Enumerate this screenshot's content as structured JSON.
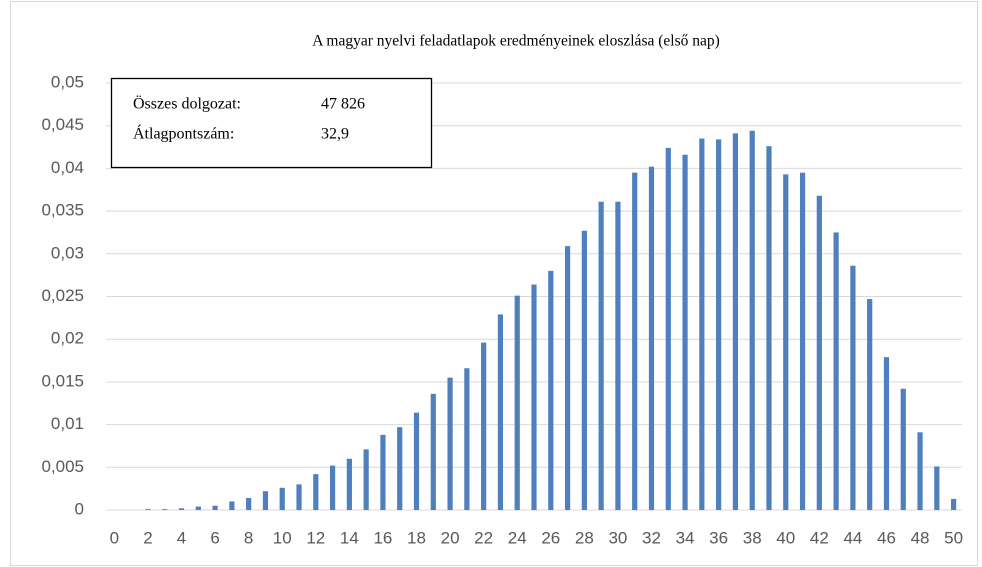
{
  "chart_data": {
    "type": "bar",
    "title": "A magyar nyelvi feladatlapok eredményeinek eloszlása (első nap)",
    "annotations": [
      {
        "label": "Összes dolgozat:",
        "value": "47 826"
      },
      {
        "label": "Átlagpontszám:",
        "value": "32,9"
      }
    ],
    "categories": [
      "0",
      null,
      "2",
      null,
      "4",
      null,
      "6",
      null,
      "8",
      null,
      "10",
      null,
      "12",
      null,
      "14",
      null,
      "16",
      null,
      "18",
      null,
      "20",
      null,
      "22",
      null,
      "24",
      null,
      "26",
      null,
      "28",
      null,
      "30",
      null,
      "32",
      null,
      "34",
      null,
      "36",
      null,
      "38",
      null,
      "40",
      null,
      "42",
      null,
      "44",
      null,
      "46",
      null,
      "48",
      null,
      "50"
    ],
    "values": [
      0,
      0,
      0.0001,
      0.0001,
      0.0002,
      0.0004,
      0.0005,
      0.001,
      0.0014,
      0.0022,
      0.0026,
      0.003,
      0.0042,
      0.0052,
      0.006,
      0.0071,
      0.0088,
      0.0097,
      0.0114,
      0.0136,
      0.0155,
      0.0166,
      0.0196,
      0.0229,
      0.0251,
      0.0264,
      0.028,
      0.0309,
      0.0327,
      0.0361,
      0.0361,
      0.0395,
      0.0402,
      0.0424,
      0.0416,
      0.0435,
      0.0434,
      0.0441,
      0.0444,
      0.0426,
      0.0393,
      0.0395,
      0.0368,
      0.0325,
      0.0286,
      0.0247,
      0.0179,
      0.0142,
      0.0091,
      0.0051,
      0.0013
    ],
    "color": "#4f7fbe",
    "ylim": [
      0,
      0.05
    ],
    "yticks": [
      0,
      {
        "value": 0.005,
        "label": "0,005"
      },
      {
        "value": 0.01,
        "label": "0,01"
      },
      {
        "value": 0.015,
        "label": "0,015"
      },
      {
        "value": 0.02,
        "label": "0,02"
      },
      {
        "value": 0.025,
        "label": "0,025"
      },
      {
        "value": 0.03,
        "label": "0,03"
      },
      {
        "value": 0.035,
        "label": "0,035"
      },
      {
        "value": 0.04,
        "label": "0,04"
      },
      {
        "value": 0.045,
        "label": "0,045"
      },
      {
        "value": 0.05,
        "label": "0,05"
      }
    ],
    "grid": true
  }
}
